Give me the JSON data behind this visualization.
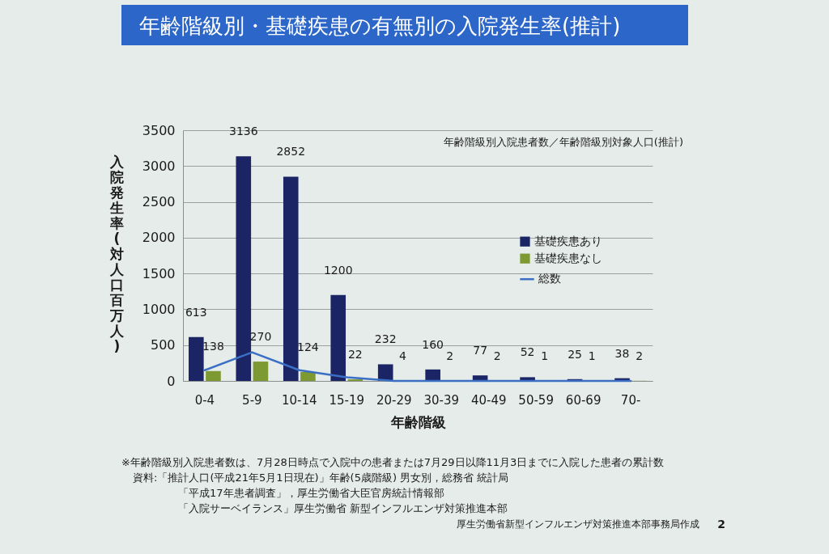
{
  "chart_data": {
    "type": "bar",
    "title": "年齢階級別・基礎疾患の有無別の入院発生率(推計)",
    "subtitle": "年齢階級別入院患者数／年齢階級別対象人口(推計)",
    "xlabel": "年齢階級",
    "ylabel": "入院発生率(対人口百万人)",
    "categories": [
      "0-4",
      "5-9",
      "10-14",
      "15-19",
      "20-29",
      "30-39",
      "40-49",
      "50-59",
      "60-69",
      "70-"
    ],
    "series": [
      {
        "name": "基礎疾患あり",
        "color": "#1b2566",
        "values": [
          613,
          3136,
          2852,
          1200,
          232,
          160,
          77,
          52,
          25,
          38
        ],
        "value_labels": [
          "613",
          "3136",
          "2852",
          "1200",
          "232",
          "160",
          "77",
          "52",
          "25",
          "38"
        ]
      },
      {
        "name": "基礎疾患なし",
        "color": "#7d9a32",
        "values": [
          138,
          270,
          124,
          22,
          4,
          2,
          2,
          1,
          1,
          2
        ],
        "value_labels": [
          "138",
          "270",
          "124",
          "22",
          "4",
          "2",
          "2",
          "1",
          "1",
          "2"
        ]
      },
      {
        "name": "総数",
        "type": "line",
        "color": "#3b6fc4",
        "values": [
          150,
          400,
          150,
          50,
          0,
          0,
          0,
          0,
          0,
          0
        ]
      }
    ],
    "ylim": [
      0,
      3500
    ],
    "yticks": [
      0,
      500,
      1000,
      1500,
      2000,
      2500,
      3000,
      3500
    ],
    "grid": "y",
    "legend": "right",
    "annotations": [
      "※年齢階級別入院患者数は、7月28日時点で入院中の患者または7月29日以降11月3日までに入院した患者の累計数",
      "資料:「推計人口(平成21年5月1日現在)」年齢(5歳階級) 男女別，総務省 統計局",
      "「平成17年患者調査」，厚生労働省大臣官房統計情報部",
      "「入院サーベイランス」厚生労働省 新型インフルエンザ対策推進本部",
      "厚生労働省新型インフルエンザ対策推進本部事務局作成",
      "2"
    ]
  }
}
